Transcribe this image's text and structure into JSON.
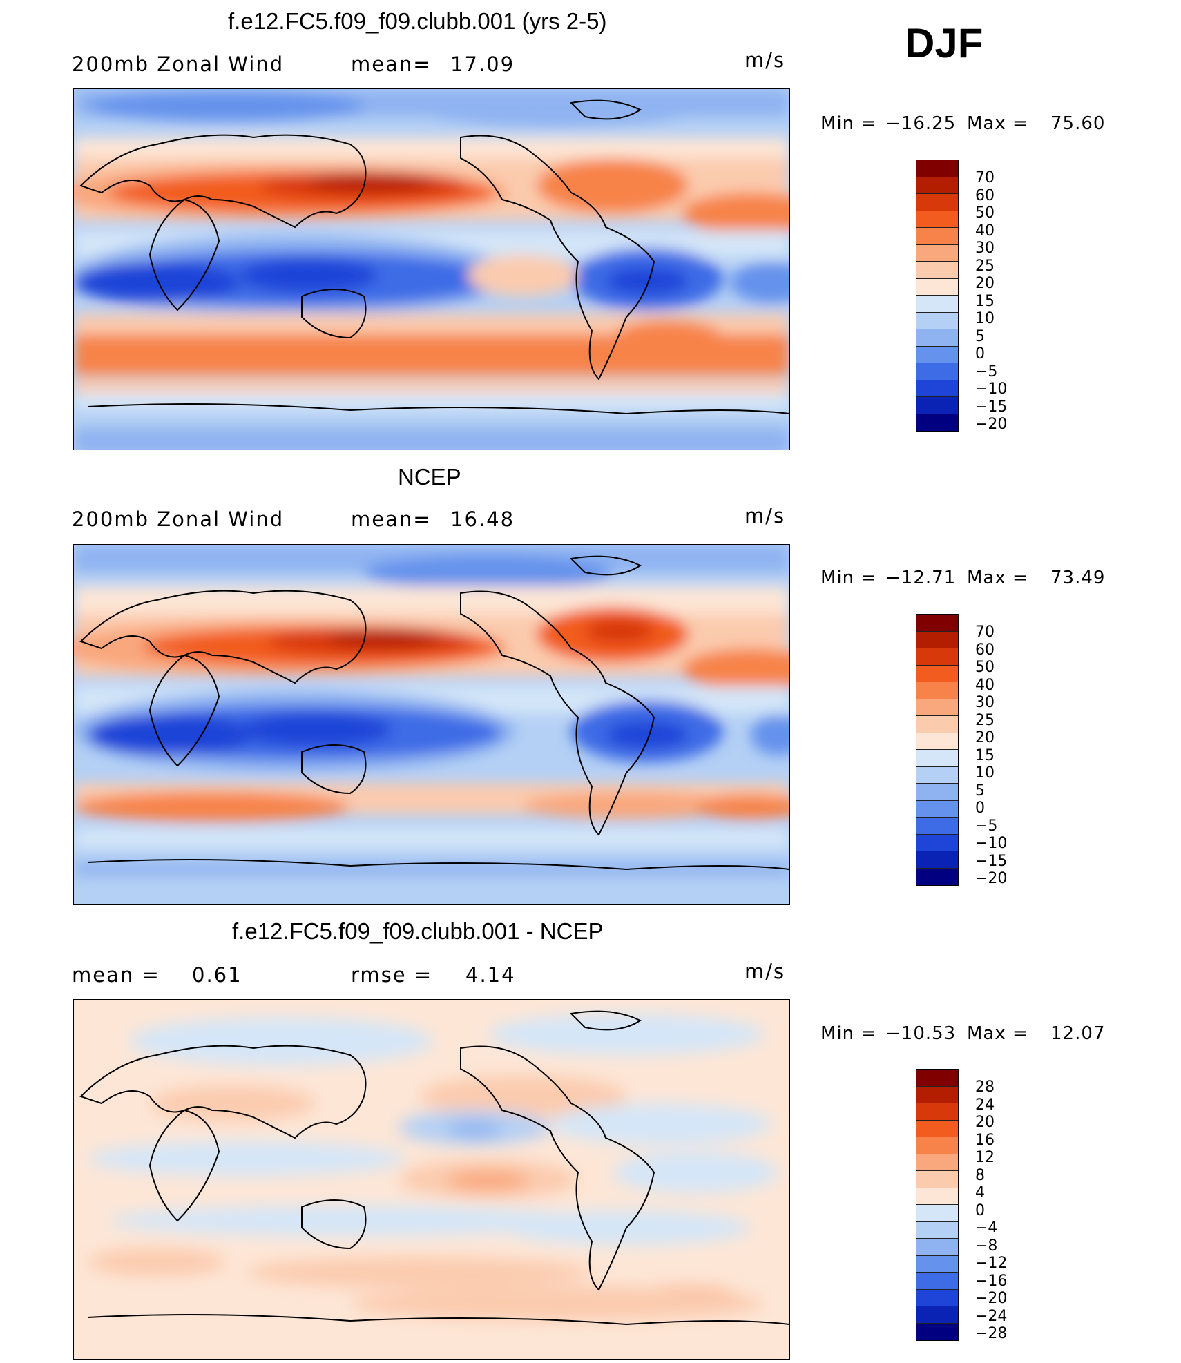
{
  "season": "DJF",
  "panels": [
    {
      "title": "f.e12.FC5.f09_f09.clubb.001 (yrs 2-5)",
      "left_label": "200mb Zonal Wind",
      "stat_label": "mean=",
      "stat_value": "17.09",
      "units": "m/s",
      "min_label": "Min =",
      "min_value": "−16.25",
      "max_label": "Max =",
      "max_value": "75.60",
      "colorbar_labels": [
        "70",
        "60",
        "50",
        "40",
        "30",
        "25",
        "20",
        "15",
        "10",
        "5",
        "0",
        "−5",
        "−10",
        "−15",
        "−20"
      ]
    },
    {
      "title": "NCEP",
      "left_label": "200mb Zonal Wind",
      "stat_label": "mean=",
      "stat_value": "16.48",
      "units": "m/s",
      "min_label": "Min =",
      "min_value": "−12.71",
      "max_label": "Max =",
      "max_value": "73.49",
      "colorbar_labels": [
        "70",
        "60",
        "50",
        "40",
        "30",
        "25",
        "20",
        "15",
        "10",
        "5",
        "0",
        "−5",
        "−10",
        "−15",
        "−20"
      ]
    },
    {
      "title": "f.e12.FC5.f09_f09.clubb.001 - NCEP",
      "left_label": "mean =",
      "left_value": "0.61",
      "stat_label": "rmse =",
      "stat_value": "4.14",
      "units": "m/s",
      "min_label": "Min =",
      "min_value": "−10.53",
      "max_label": "Max =",
      "max_value": "12.07",
      "colorbar_labels": [
        "28",
        "24",
        "20",
        "16",
        "12",
        "8",
        "4",
        "0",
        "−4",
        "−8",
        "−12",
        "−16",
        "−20",
        "−24",
        "−28"
      ]
    }
  ],
  "colors": {
    "wind_scale": [
      "#800000",
      "#b31d00",
      "#d8390a",
      "#f25c1e",
      "#f7834a",
      "#f9a77d",
      "#fbcbae",
      "#fde6d6",
      "#d4e6f8",
      "#b4d0f5",
      "#8fb3f1",
      "#6592ec",
      "#3d6ce6",
      "#1f45d8",
      "#0a23b5",
      "#000080"
    ],
    "diff_scale": [
      "#800000",
      "#b31d00",
      "#d8390a",
      "#f25c1e",
      "#f7834a",
      "#f9a77d",
      "#fbcbae",
      "#fde6d6",
      "#d4e6f8",
      "#b4d0f5",
      "#8fb3f1",
      "#6592ec",
      "#3d6ce6",
      "#1f45d8",
      "#0a23b5",
      "#000080"
    ]
  }
}
